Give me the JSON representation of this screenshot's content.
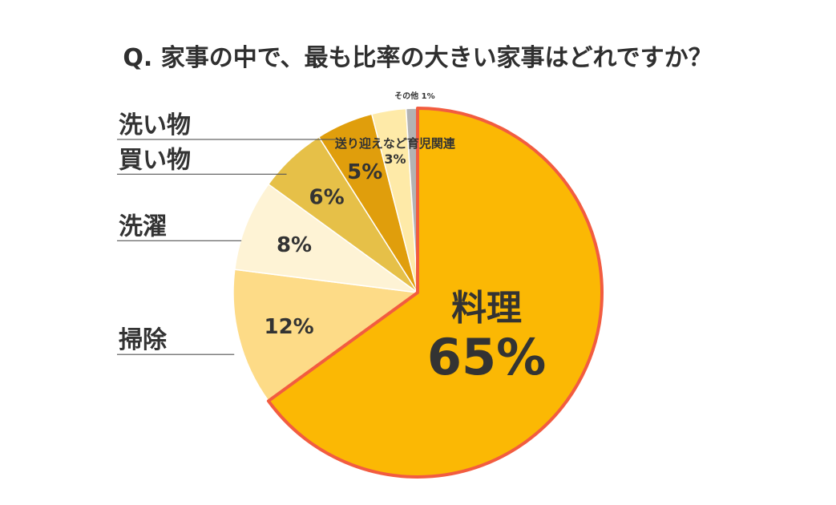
{
  "chart_data": {
    "type": "pie",
    "title": "Q. 家事の中で、最も比率の大きい家事はどれですか？",
    "unit": "%",
    "slices": [
      {
        "name": "料理",
        "value": 65,
        "color": "#FBB804"
      },
      {
        "name": "掃除",
        "value": 12,
        "color": "#FDDB87"
      },
      {
        "name": "洗濯",
        "value": 8,
        "color": "#FEF3D5"
      },
      {
        "name": "買い物",
        "value": 6,
        "color": "#E6C048"
      },
      {
        "name": "洗い物",
        "value": 5,
        "color": "#E09E0C"
      },
      {
        "name": "送り迎えなど育児関連",
        "value": 3,
        "color": "#FEEAA8"
      },
      {
        "name": "その他",
        "value": 1,
        "color": "#B3B3B3"
      }
    ],
    "highlight": {
      "slice": "料理",
      "outline_color": "#F25C40"
    }
  }
}
